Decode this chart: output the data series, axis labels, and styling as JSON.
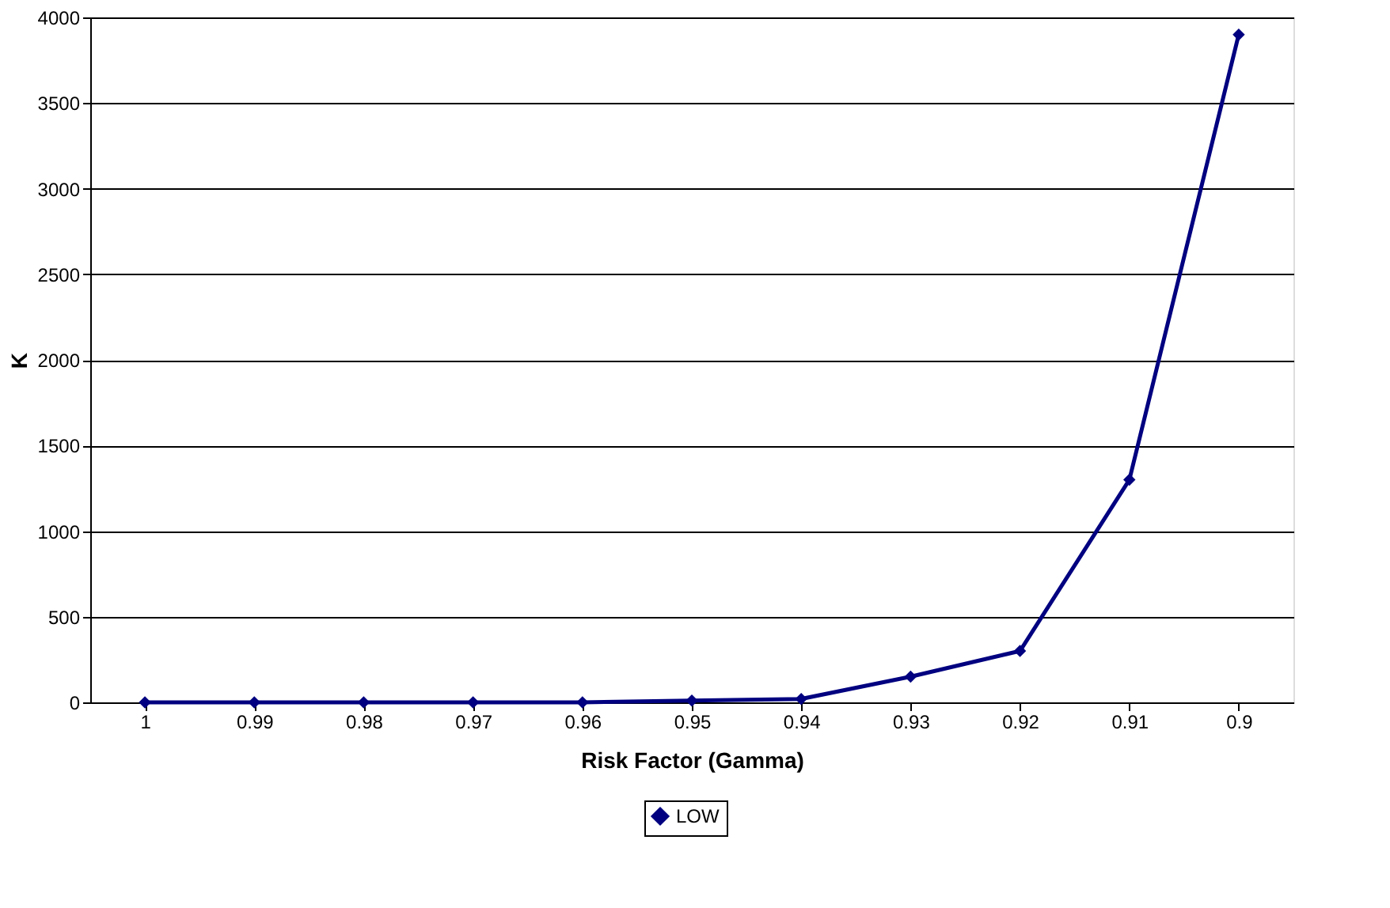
{
  "chart_data": {
    "type": "line",
    "xlabel": "Risk Factor (Gamma)",
    "ylabel": "K",
    "categories": [
      "1",
      "0.99",
      "0.98",
      "0.97",
      "0.96",
      "0.95",
      "0.94",
      "0.93",
      "0.92",
      "0.91",
      "0.9"
    ],
    "series": [
      {
        "name": "LOW",
        "color": "#000080",
        "values": [
          0,
          0,
          0,
          0,
          0,
          10,
          20,
          150,
          300,
          1300,
          3900
        ]
      }
    ],
    "ylim": [
      0,
      4000
    ],
    "yticks": [
      0,
      500,
      1000,
      1500,
      2000,
      2500,
      3000,
      3500,
      4000
    ],
    "grid": "y",
    "legend": "bottom",
    "marker": "diamond",
    "line_style": "solid"
  }
}
